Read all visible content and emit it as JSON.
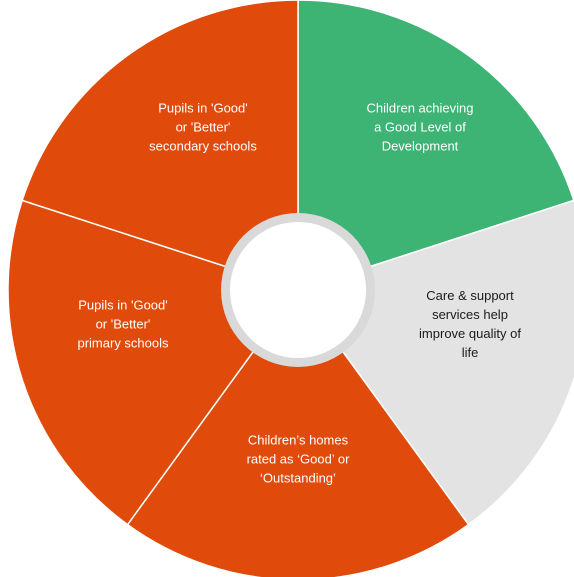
{
  "colors": {
    "green": "#3db374",
    "orange": "#e04a0a",
    "grey": "#e3e3e3",
    "ring": "#d9d9d9",
    "separator": "#ffffff",
    "center": "#ffffff"
  },
  "segments": [
    {
      "id": "good-level-of-development",
      "color": "green",
      "lines": [
        "Children achieving",
        "a Good Level of",
        "Development"
      ]
    },
    {
      "id": "care-support-services",
      "color": "grey",
      "lines": [
        "Care & support",
        "services help",
        "improve quality of",
        "life"
      ]
    },
    {
      "id": "childrens-homes",
      "color": "orange",
      "lines": [
        "Children’s homes",
        "rated as ‘Good’ or",
        "‘Outstanding’"
      ]
    },
    {
      "id": "primary-schools",
      "color": "orange",
      "lines": [
        "Pupils in 'Good'",
        "or 'Better'",
        "primary schools"
      ]
    },
    {
      "id": "secondary-schools",
      "color": "orange",
      "lines": [
        "Pupils in 'Good'",
        "or 'Better'",
        "secondary schools"
      ]
    }
  ]
}
